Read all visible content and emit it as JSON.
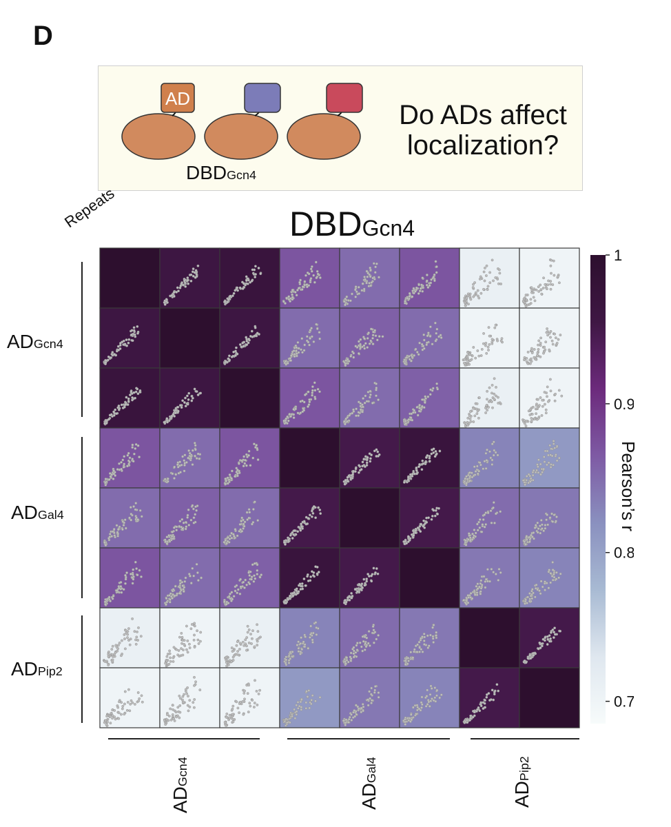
{
  "panel_letter": "D",
  "schematic": {
    "ad_box_label": "AD",
    "dbd_label_main": "DBD",
    "dbd_label_sub": "Gcn4",
    "question_line1": "Do ADs affect",
    "question_line2": "localization?",
    "box_colors": [
      "#d0804c",
      "#7c7cb8",
      "#c94a5c"
    ],
    "dbd_color": "#d18a5e"
  },
  "chart_data": {
    "type": "heatmap",
    "title_main": "DBD",
    "title_sub": "Gcn4",
    "corner_label": "Repeats",
    "groups": [
      {
        "main": "AD",
        "sub": "Gcn4",
        "n": 3
      },
      {
        "main": "AD",
        "sub": "Gal4",
        "n": 3
      },
      {
        "main": "AD",
        "sub": "Pip2",
        "n": 2
      }
    ],
    "values": [
      [
        1.0,
        0.96,
        0.97,
        0.87,
        0.85,
        0.87,
        0.71,
        0.7
      ],
      [
        0.96,
        1.0,
        0.96,
        0.85,
        0.86,
        0.85,
        0.7,
        0.7
      ],
      [
        0.97,
        0.96,
        1.0,
        0.87,
        0.85,
        0.86,
        0.71,
        0.7
      ],
      [
        0.87,
        0.85,
        0.87,
        1.0,
        0.95,
        0.97,
        0.83,
        0.81
      ],
      [
        0.85,
        0.86,
        0.85,
        0.95,
        1.0,
        0.95,
        0.85,
        0.84
      ],
      [
        0.87,
        0.85,
        0.86,
        0.97,
        0.95,
        1.0,
        0.84,
        0.83
      ],
      [
        0.71,
        0.7,
        0.71,
        0.83,
        0.85,
        0.84,
        1.0,
        0.95
      ],
      [
        0.7,
        0.7,
        0.7,
        0.81,
        0.84,
        0.83,
        0.95,
        1.0
      ]
    ],
    "colorbar": {
      "label": "Pearson’s r",
      "min": 0.685,
      "max": 1.0,
      "ticks": [
        0.7,
        0.8,
        0.9,
        1.0
      ],
      "tick_labels": [
        "0.7",
        "0.8",
        "0.9",
        "1"
      ],
      "colormap": [
        "#f7fbfb",
        "#dfe7ef",
        "#a8bad3",
        "#8a90bf",
        "#7e5aa4",
        "#6c2a7c",
        "#3f1744",
        "#2d0f2e"
      ]
    },
    "scatter_color": "#bdbdbd"
  }
}
